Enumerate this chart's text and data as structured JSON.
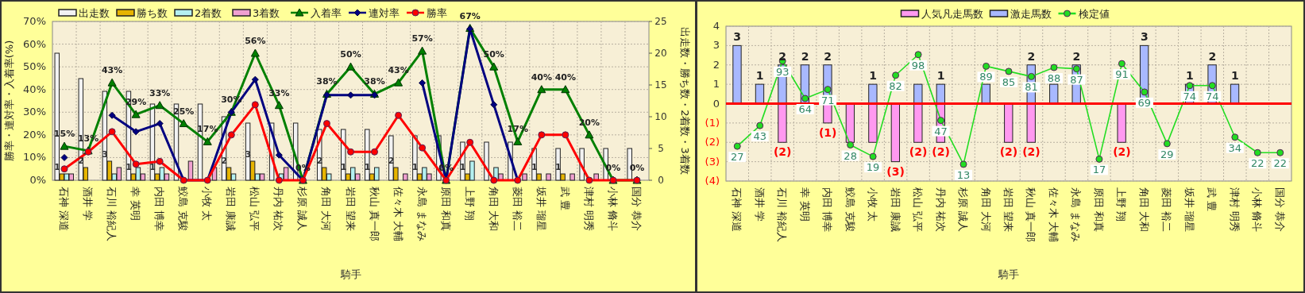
{
  "chart_data": [
    {
      "type": "bar",
      "categories": [
        "石神 深道",
        "酒井 学",
        "石川 裕紀人",
        "幸 英明",
        "内田 博幸",
        "鮫島 克駿",
        "小牧 太",
        "岩田 康誠",
        "松山 弘平",
        "丹内 祐次",
        "杉原 誠人",
        "角田 大河",
        "岩田 望来",
        "秋山 真一郎",
        "佐々木 大輔",
        "永島 まなみ",
        "原田 和真",
        "上野 翔",
        "角田 大和",
        "菱田 裕二",
        "坂井 瑠星",
        "武 豊",
        "津村 明秀",
        "小林 脩斗",
        "国分 恭介"
      ],
      "xlabel": "騎手",
      "ylabel": "勝率・連対率・入着率(%)",
      "y2label": "出走数・勝ち数・2着数・3着数",
      "ylim": [
        0,
        70
      ],
      "yticks": [
        {
          "value": 0,
          "label": "0%"
        },
        {
          "value": 10,
          "label": "10%"
        },
        {
          "value": 20,
          "label": "20%"
        },
        {
          "value": 30,
          "label": "30%"
        },
        {
          "value": 40,
          "label": "40%"
        },
        {
          "value": 50,
          "label": "50%"
        },
        {
          "value": 60,
          "label": "60%"
        },
        {
          "value": 70,
          "label": "70%"
        }
      ],
      "y2lim": [
        0,
        25
      ],
      "y2ticks": [
        0,
        5,
        10,
        15,
        20,
        25
      ],
      "grid": true,
      "legend": "top left",
      "series": [
        {
          "name": "出走数",
          "color": "#f2f2f2",
          "axis": "y2",
          "values": [
            20,
            16,
            14,
            14,
            12,
            12,
            12,
            10,
            9,
            9,
            9,
            8,
            8,
            8,
            7,
            7,
            7,
            6,
            6,
            6,
            5,
            5,
            5,
            5,
            5
          ]
        },
        {
          "name": "勝ち数",
          "color": "#e6b400",
          "axis": "y2",
          "values": [
            1,
            2,
            3,
            1,
            1,
            0,
            0,
            2,
            3,
            0,
            0,
            2,
            1,
            1,
            2,
            1,
            0,
            1,
            0,
            0,
            1,
            1,
            0,
            0,
            0
          ],
          "value_labels": [
            "1",
            "2",
            "3",
            "1",
            "1",
            null,
            null,
            "2",
            "3",
            null,
            null,
            "2",
            "1",
            "1",
            "2",
            "1",
            null,
            "1",
            null,
            null,
            "1",
            "1",
            null,
            null,
            null
          ]
        },
        {
          "name": "2着数",
          "color": "#b4f0f0",
          "axis": "y2",
          "values": [
            1,
            0,
            1,
            2,
            2,
            0,
            0,
            1,
            1,
            1,
            0,
            1,
            2,
            2,
            0,
            2,
            0,
            3,
            2,
            0,
            0,
            0,
            0,
            0,
            0
          ]
        },
        {
          "name": "3着数",
          "color": "#f0a0d0",
          "axis": "y2",
          "values": [
            1,
            0,
            2,
            1,
            1,
            3,
            2,
            0,
            1,
            2,
            0,
            0,
            1,
            0,
            1,
            1,
            0,
            0,
            1,
            1,
            1,
            1,
            1,
            0,
            0
          ]
        },
        {
          "name": "入着率",
          "type": "line",
          "color": "#008000",
          "marker": "triangle",
          "values": [
            15,
            13,
            43,
            29,
            33,
            25,
            17,
            30,
            56,
            33,
            0,
            38,
            50,
            38,
            43,
            57,
            0,
            67,
            50,
            17,
            40,
            40,
            20,
            0,
            0
          ],
          "value_labels": [
            "15%",
            "13%",
            "43%",
            "29%",
            "33%",
            "25%",
            "17%",
            "30%",
            "56%",
            "33%",
            "0%",
            "38%",
            "50%",
            "38%",
            "43%",
            "57%",
            "0%",
            "67%",
            "50%",
            "17%",
            "40%",
            "40%",
            "20%",
            "0%",
            "0%"
          ]
        },
        {
          "name": "連対率",
          "type": "line",
          "color": "#000080",
          "marker": "diamond",
          "values": [
            10,
            null,
            28.6,
            21.4,
            25,
            0,
            0,
            30,
            44.4,
            11.1,
            0,
            37.5,
            37.5,
            37.5,
            null,
            42.9,
            0,
            66.7,
            33.3,
            0,
            null,
            null,
            null,
            null,
            null
          ]
        },
        {
          "name": "勝率",
          "type": "line",
          "color": "#ff0000",
          "marker": "circle",
          "values": [
            5,
            12.5,
            21.4,
            7.1,
            8.3,
            0,
            0,
            20,
            33.3,
            0,
            0,
            25,
            12.5,
            12.5,
            28.6,
            14.3,
            0,
            16.7,
            0,
            0,
            20,
            20,
            0,
            0,
            0
          ]
        }
      ]
    },
    {
      "type": "bar",
      "categories": [
        "石神 深道",
        "酒井 学",
        "石川 裕紀人",
        "幸 英明",
        "内田 博幸",
        "鮫島 克駿",
        "小牧 太",
        "岩田 康誠",
        "松山 弘平",
        "丹内 祐次",
        "杉原 誠人",
        "角田 大河",
        "岩田 望来",
        "秋山 真一郎",
        "佐々木 大輔",
        "永島 まなみ",
        "原田 和真",
        "上野 翔",
        "角田 大和",
        "菱田 裕二",
        "坂井 瑠星",
        "武 豊",
        "津村 明秀",
        "小林 脩斗",
        "国分 恭介"
      ],
      "xlabel": "騎手",
      "ylim": [
        -4,
        4
      ],
      "yticks": [
        {
          "value": 4,
          "label": "4"
        },
        {
          "value": 3,
          "label": "3"
        },
        {
          "value": 2,
          "label": "2"
        },
        {
          "value": 1,
          "label": "1"
        },
        {
          "value": 0,
          "label": "0"
        },
        {
          "value": -1,
          "label": "(1)"
        },
        {
          "value": -2,
          "label": "(2)"
        },
        {
          "value": -3,
          "label": "(3)"
        },
        {
          "value": -4,
          "label": "(4)"
        }
      ],
      "y2lim": [
        0,
        120
      ],
      "stacked": true,
      "grid": true,
      "legend": "top",
      "ref_lines": [
        {
          "axis": "y",
          "value": 0,
          "color": "#ff0000"
        }
      ],
      "series": [
        {
          "name": "人気凡走馬数",
          "color": "#ff99f0",
          "values": [
            0,
            0,
            -2,
            0,
            -1,
            -2,
            -2,
            -3,
            -2,
            -2,
            0,
            0,
            -2,
            -2,
            0,
            0,
            0,
            -2,
            0,
            0,
            0,
            0,
            0,
            0,
            0
          ],
          "value_labels": [
            null,
            null,
            "(2)",
            null,
            "(1)",
            null,
            null,
            "(3)",
            "(2)",
            "(2)",
            null,
            null,
            "(2)",
            "(2)",
            null,
            null,
            null,
            "(2)",
            null,
            null,
            null,
            null,
            null,
            null,
            null
          ]
        },
        {
          "name": "激走馬数",
          "color": "#a8b8ff",
          "values": [
            3,
            1,
            2,
            2,
            2,
            0,
            1,
            0,
            1,
            1,
            0,
            1,
            0,
            2,
            1,
            2,
            0,
            0,
            3,
            0,
            1,
            2,
            1,
            0,
            0
          ],
          "value_labels": [
            "3",
            "1",
            "2",
            "2",
            "2",
            null,
            "1",
            null,
            null,
            "1",
            null,
            null,
            null,
            "2",
            null,
            "2",
            null,
            null,
            "3",
            null,
            "1",
            "2",
            "1",
            null,
            null
          ]
        },
        {
          "name": "検定値",
          "type": "line",
          "axis": "y2",
          "color": "#22dd22",
          "marker": "circle",
          "values": [
            27,
            43,
            93,
            64,
            71,
            28,
            19,
            82,
            98,
            47,
            13,
            89,
            85,
            81,
            88,
            87,
            17,
            91,
            69,
            29,
            74,
            74,
            34,
            22,
            22
          ],
          "value_labels": [
            "27",
            "43",
            "93",
            "64",
            "71",
            "28",
            "19",
            "82",
            "98",
            "47",
            "13",
            "89",
            "85",
            "81",
            "88",
            "87",
            "17",
            "91",
            "69",
            "29",
            "74",
            "74",
            "34",
            "22",
            "22"
          ]
        }
      ]
    }
  ]
}
